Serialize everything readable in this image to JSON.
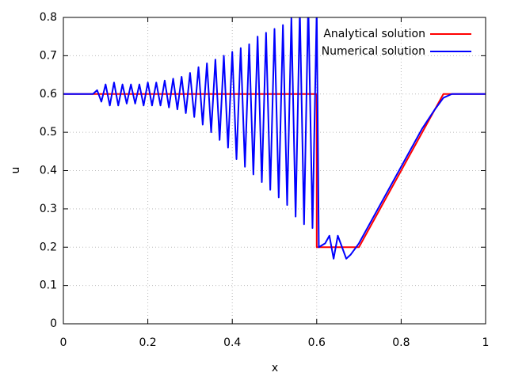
{
  "chart_data": {
    "type": "line",
    "xlabel": "x",
    "ylabel": "u",
    "xlim": [
      0,
      1
    ],
    "ylim": [
      0,
      0.8
    ],
    "xticks": [
      0,
      0.2,
      0.4,
      0.6,
      0.8,
      1
    ],
    "yticks": [
      0,
      0.1,
      0.2,
      0.3,
      0.4,
      0.5,
      0.6,
      0.7,
      0.8
    ],
    "grid": true,
    "legend": "upper right",
    "series": [
      {
        "name": "Analytical solution",
        "color": "#ff0000",
        "x": [
          0,
          0.6,
          0.6,
          0.7,
          0.9,
          1
        ],
        "values": [
          0.6,
          0.6,
          0.2,
          0.2,
          0.6,
          0.6
        ]
      },
      {
        "name": "Numerical solution",
        "color": "#0000ff",
        "x": [
          0,
          0.07,
          0.08,
          0.09,
          0.1,
          0.11,
          0.12,
          0.13,
          0.14,
          0.15,
          0.16,
          0.17,
          0.18,
          0.19,
          0.2,
          0.21,
          0.22,
          0.23,
          0.24,
          0.25,
          0.26,
          0.27,
          0.28,
          0.29,
          0.3,
          0.31,
          0.32,
          0.33,
          0.34,
          0.35,
          0.36,
          0.37,
          0.38,
          0.39,
          0.4,
          0.41,
          0.42,
          0.43,
          0.44,
          0.45,
          0.46,
          0.47,
          0.48,
          0.49,
          0.5,
          0.51,
          0.52,
          0.53,
          0.54,
          0.55,
          0.56,
          0.57,
          0.58,
          0.59,
          0.6,
          0.605,
          0.62,
          0.63,
          0.64,
          0.65,
          0.66,
          0.67,
          0.68,
          0.7,
          0.75,
          0.8,
          0.85,
          0.88,
          0.9,
          0.92,
          1.0
        ],
        "values": [
          0.6,
          0.6,
          0.61,
          0.58,
          0.625,
          0.57,
          0.63,
          0.57,
          0.625,
          0.575,
          0.625,
          0.575,
          0.625,
          0.57,
          0.63,
          0.57,
          0.63,
          0.57,
          0.635,
          0.565,
          0.64,
          0.56,
          0.645,
          0.55,
          0.655,
          0.54,
          0.67,
          0.52,
          0.68,
          0.5,
          0.69,
          0.48,
          0.7,
          0.46,
          0.71,
          0.43,
          0.72,
          0.41,
          0.73,
          0.39,
          0.75,
          0.37,
          0.76,
          0.35,
          0.77,
          0.33,
          0.78,
          0.31,
          0.8,
          0.28,
          0.82,
          0.26,
          0.84,
          0.25,
          0.82,
          0.2,
          0.21,
          0.23,
          0.17,
          0.23,
          0.2,
          0.17,
          0.18,
          0.21,
          0.31,
          0.41,
          0.51,
          0.56,
          0.59,
          0.6,
          0.6
        ]
      }
    ]
  }
}
